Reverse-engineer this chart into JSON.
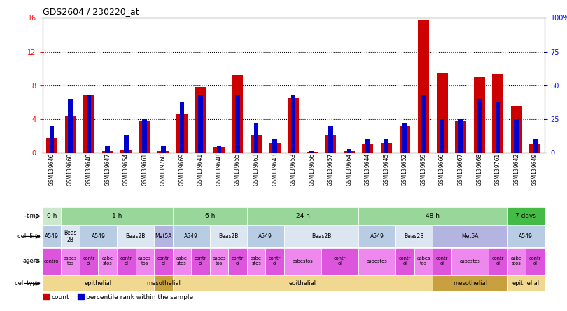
{
  "title": "GDS2604 / 230220_at",
  "samples": [
    "GSM139646",
    "GSM139660",
    "GSM139640",
    "GSM139647",
    "GSM139654",
    "GSM139661",
    "GSM139760",
    "GSM139669",
    "GSM139641",
    "GSM139648",
    "GSM139655",
    "GSM139663",
    "GSM139643",
    "GSM139653",
    "GSM139656",
    "GSM139657",
    "GSM139664",
    "GSM139644",
    "GSM139645",
    "GSM139652",
    "GSM139659",
    "GSM139666",
    "GSM139667",
    "GSM139668",
    "GSM139761",
    "GSM139642",
    "GSM139649"
  ],
  "count_values": [
    1.8,
    4.4,
    6.8,
    0.2,
    0.4,
    3.8,
    0.2,
    4.6,
    7.8,
    0.7,
    9.2,
    2.1,
    1.2,
    6.5,
    0.1,
    2.1,
    0.2,
    1.0,
    1.2,
    3.2,
    15.8,
    9.5,
    3.8,
    9.0,
    9.3,
    5.5,
    1.1
  ],
  "percentile_values": [
    20,
    40,
    43,
    5,
    13,
    25,
    5,
    38,
    43,
    5,
    43,
    22,
    10,
    43,
    2,
    20,
    3,
    10,
    10,
    22,
    43,
    25,
    25,
    40,
    38,
    25,
    10
  ],
  "ylim_left": [
    0,
    16
  ],
  "ylim_right": [
    0,
    100
  ],
  "yticks_left": [
    0,
    4,
    8,
    12,
    16
  ],
  "yticks_right": [
    0,
    25,
    50,
    75,
    100
  ],
  "ytick_labels_right": [
    "0",
    "25",
    "50",
    "75",
    "100%"
  ],
  "bar_color": "#cc0000",
  "percentile_color": "#0000cc",
  "background_color": "#ffffff",
  "time_groups": [
    {
      "label": "0 h",
      "start": 0,
      "end": 1,
      "color": "#cce8cc"
    },
    {
      "label": "1 h",
      "start": 1,
      "end": 7,
      "color": "#99d699"
    },
    {
      "label": "6 h",
      "start": 7,
      "end": 11,
      "color": "#99d699"
    },
    {
      "label": "24 h",
      "start": 11,
      "end": 17,
      "color": "#99d699"
    },
    {
      "label": "48 h",
      "start": 17,
      "end": 25,
      "color": "#99d699"
    },
    {
      "label": "7 days",
      "start": 25,
      "end": 27,
      "color": "#44bb44"
    }
  ],
  "cell_line_groups": [
    {
      "label": "A549",
      "start": 0,
      "end": 1,
      "color": "#b8cce4"
    },
    {
      "label": "Beas\n2B",
      "start": 1,
      "end": 2,
      "color": "#dce6f1"
    },
    {
      "label": "A549",
      "start": 2,
      "end": 4,
      "color": "#b8cce4"
    },
    {
      "label": "Beas2B",
      "start": 4,
      "end": 6,
      "color": "#dce6f1"
    },
    {
      "label": "Met5A",
      "start": 6,
      "end": 7,
      "color": "#b4b4e0"
    },
    {
      "label": "A549",
      "start": 7,
      "end": 9,
      "color": "#b8cce4"
    },
    {
      "label": "Beas2B",
      "start": 9,
      "end": 11,
      "color": "#dce6f1"
    },
    {
      "label": "A549",
      "start": 11,
      "end": 13,
      "color": "#b8cce4"
    },
    {
      "label": "Beas2B",
      "start": 13,
      "end": 17,
      "color": "#dce6f1"
    },
    {
      "label": "A549",
      "start": 17,
      "end": 19,
      "color": "#b8cce4"
    },
    {
      "label": "Beas2B",
      "start": 19,
      "end": 21,
      "color": "#dce6f1"
    },
    {
      "label": "Met5A",
      "start": 21,
      "end": 25,
      "color": "#b4b4e0"
    },
    {
      "label": "A549",
      "start": 25,
      "end": 27,
      "color": "#b8cce4"
    }
  ],
  "agent_groups": [
    {
      "label": "control",
      "start": 0,
      "end": 1,
      "color": "#dd55dd"
    },
    {
      "label": "asbes\ntos",
      "start": 1,
      "end": 2,
      "color": "#ee88ee"
    },
    {
      "label": "contr\nol",
      "start": 2,
      "end": 3,
      "color": "#dd55dd"
    },
    {
      "label": "asbe\nstos",
      "start": 3,
      "end": 4,
      "color": "#ee88ee"
    },
    {
      "label": "contr\nol",
      "start": 4,
      "end": 5,
      "color": "#dd55dd"
    },
    {
      "label": "asbes\ntos",
      "start": 5,
      "end": 6,
      "color": "#ee88ee"
    },
    {
      "label": "contr\nol",
      "start": 6,
      "end": 7,
      "color": "#dd55dd"
    },
    {
      "label": "asbe\nstos",
      "start": 7,
      "end": 8,
      "color": "#ee88ee"
    },
    {
      "label": "contr\nol",
      "start": 8,
      "end": 9,
      "color": "#dd55dd"
    },
    {
      "label": "asbes\ntos",
      "start": 9,
      "end": 10,
      "color": "#ee88ee"
    },
    {
      "label": "contr\nol",
      "start": 10,
      "end": 11,
      "color": "#dd55dd"
    },
    {
      "label": "asbe\nstos",
      "start": 11,
      "end": 12,
      "color": "#ee88ee"
    },
    {
      "label": "contr\nol",
      "start": 12,
      "end": 13,
      "color": "#dd55dd"
    },
    {
      "label": "asbestos",
      "start": 13,
      "end": 15,
      "color": "#ee88ee"
    },
    {
      "label": "contr\nol",
      "start": 15,
      "end": 17,
      "color": "#dd55dd"
    },
    {
      "label": "asbestos",
      "start": 17,
      "end": 19,
      "color": "#ee88ee"
    },
    {
      "label": "contr\nol",
      "start": 19,
      "end": 20,
      "color": "#dd55dd"
    },
    {
      "label": "asbes\ntos",
      "start": 20,
      "end": 21,
      "color": "#ee88ee"
    },
    {
      "label": "contr\nol",
      "start": 21,
      "end": 22,
      "color": "#dd55dd"
    },
    {
      "label": "asbestos",
      "start": 22,
      "end": 24,
      "color": "#ee88ee"
    },
    {
      "label": "contr\nol",
      "start": 24,
      "end": 25,
      "color": "#dd55dd"
    },
    {
      "label": "asbe\nstos",
      "start": 25,
      "end": 26,
      "color": "#ee88ee"
    },
    {
      "label": "contr\nol",
      "start": 26,
      "end": 27,
      "color": "#dd55dd"
    }
  ],
  "cell_type_groups": [
    {
      "label": "epithelial",
      "start": 0,
      "end": 6,
      "color": "#f0d890"
    },
    {
      "label": "mesothelial",
      "start": 6,
      "end": 7,
      "color": "#c8a040"
    },
    {
      "label": "epithelial",
      "start": 7,
      "end": 21,
      "color": "#f0d890"
    },
    {
      "label": "mesothelial",
      "start": 21,
      "end": 25,
      "color": "#c8a040"
    },
    {
      "label": "epithelial",
      "start": 25,
      "end": 27,
      "color": "#f0d890"
    }
  ]
}
